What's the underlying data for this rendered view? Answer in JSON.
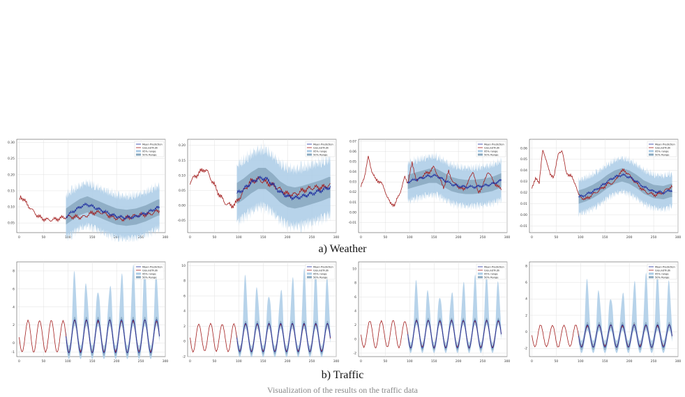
{
  "captions": {
    "weather": "a) Weather",
    "traffic": "b) Traffic"
  },
  "figure_caption": "Visualization of the results on the traffic data",
  "colors": {
    "mean": "#1f2fa0",
    "truth": "#a31d1d",
    "band95": "#aacbe6",
    "band50": "#8aa8bf"
  },
  "chart_data": [
    {
      "type": "line",
      "group": "Weather",
      "panel": 1,
      "xlim": [
        -5,
        300
      ],
      "ylim": [
        0.02,
        0.31
      ],
      "xticks": [
        0,
        50,
        100,
        150,
        200,
        250,
        300
      ],
      "yticks": [
        0.05,
        0.1,
        0.15,
        0.2,
        0.25,
        0.3
      ],
      "ytick_labels": [
        "0.05",
        "0.10",
        "0.15",
        "0.20",
        "0.25",
        "0.30"
      ],
      "legend": [
        "Mean Prediction",
        "GroundTruth",
        "95% range",
        "50% Range"
      ],
      "pred_start": 96,
      "truth_points": [
        [
          0,
          0.12
        ],
        [
          3,
          0.135
        ],
        [
          8,
          0.125
        ],
        [
          15,
          0.11
        ],
        [
          25,
          0.09
        ],
        [
          40,
          0.068
        ],
        [
          55,
          0.062
        ],
        [
          70,
          0.062
        ],
        [
          85,
          0.064
        ],
        [
          96,
          0.066
        ],
        [
          110,
          0.068
        ],
        [
          130,
          0.07
        ],
        [
          150,
          0.082
        ],
        [
          170,
          0.08
        ],
        [
          190,
          0.07
        ],
        [
          210,
          0.063
        ],
        [
          230,
          0.068
        ],
        [
          250,
          0.074
        ],
        [
          270,
          0.08
        ],
        [
          285,
          0.09
        ]
      ],
      "mean_points": [
        [
          96,
          0.07
        ],
        [
          110,
          0.085
        ],
        [
          125,
          0.1
        ],
        [
          140,
          0.108
        ],
        [
          160,
          0.095
        ],
        [
          180,
          0.082
        ],
        [
          200,
          0.07
        ],
        [
          220,
          0.066
        ],
        [
          240,
          0.07
        ],
        [
          260,
          0.08
        ],
        [
          285,
          0.098
        ]
      ],
      "band95_half": 0.07,
      "band50_half": 0.025
    },
    {
      "type": "line",
      "group": "Weather",
      "panel": 2,
      "xlim": [
        -5,
        300
      ],
      "ylim": [
        -0.09,
        0.22
      ],
      "xticks": [
        0,
        50,
        100,
        150,
        200,
        250,
        300
      ],
      "yticks": [
        -0.05,
        0.0,
        0.05,
        0.1,
        0.15,
        0.2
      ],
      "ytick_labels": [
        "-0.05",
        "0.00",
        "0.05",
        "0.10",
        "0.15",
        "0.20"
      ],
      "legend": [
        "Mean Prediction",
        "GroundTruth",
        "95% range",
        "50% Range"
      ],
      "pred_start": 96,
      "truth_points": [
        [
          0,
          0.08
        ],
        [
          10,
          0.1
        ],
        [
          20,
          0.11
        ],
        [
          28,
          0.12
        ],
        [
          35,
          0.11
        ],
        [
          45,
          0.08
        ],
        [
          55,
          0.05
        ],
        [
          70,
          0.015
        ],
        [
          85,
          0.0
        ],
        [
          96,
          0.01
        ],
        [
          110,
          0.045
        ],
        [
          125,
          0.08
        ],
        [
          140,
          0.09
        ],
        [
          155,
          0.08
        ],
        [
          170,
          0.065
        ],
        [
          185,
          0.05
        ],
        [
          200,
          0.038
        ],
        [
          215,
          0.04
        ],
        [
          230,
          0.05
        ],
        [
          250,
          0.055
        ],
        [
          270,
          0.06
        ],
        [
          285,
          0.07
        ]
      ],
      "mean_points": [
        [
          96,
          0.04
        ],
        [
          110,
          0.055
        ],
        [
          125,
          0.075
        ],
        [
          140,
          0.09
        ],
        [
          155,
          0.09
        ],
        [
          170,
          0.07
        ],
        [
          185,
          0.045
        ],
        [
          200,
          0.03
        ],
        [
          215,
          0.025
        ],
        [
          230,
          0.03
        ],
        [
          250,
          0.04
        ],
        [
          270,
          0.05
        ],
        [
          285,
          0.06
        ]
      ],
      "band95_half": 0.1,
      "band50_half": 0.035
    },
    {
      "type": "line",
      "group": "Weather",
      "panel": 3,
      "xlim": [
        -5,
        300
      ],
      "ylim": [
        -0.02,
        0.072
      ],
      "xticks": [
        0,
        50,
        100,
        150,
        200,
        250,
        300
      ],
      "yticks": [
        -0.01,
        0.0,
        0.01,
        0.02,
        0.03,
        0.04,
        0.05,
        0.06,
        0.07
      ],
      "ytick_labels": [
        "-0.01",
        "0.00",
        "0.01",
        "0.02",
        "0.03",
        "0.04",
        "0.05",
        "0.06",
        "0.07"
      ],
      "legend": [
        "Mean Prediction",
        "GroundTruth",
        "95% range",
        "50% Range"
      ],
      "pred_start": 96,
      "truth_points": [
        [
          0,
          0.025
        ],
        [
          8,
          0.038
        ],
        [
          15,
          0.055
        ],
        [
          22,
          0.042
        ],
        [
          30,
          0.032
        ],
        [
          40,
          0.03
        ],
        [
          50,
          0.02
        ],
        [
          60,
          0.008
        ],
        [
          70,
          0.008
        ],
        [
          80,
          0.02
        ],
        [
          90,
          0.035
        ],
        [
          96,
          0.03
        ],
        [
          105,
          0.048
        ],
        [
          115,
          0.03
        ],
        [
          125,
          0.035
        ],
        [
          140,
          0.04
        ],
        [
          150,
          0.045
        ],
        [
          160,
          0.035
        ],
        [
          170,
          0.025
        ],
        [
          180,
          0.04
        ],
        [
          190,
          0.028
        ],
        [
          200,
          0.025
        ],
        [
          210,
          0.022
        ],
        [
          220,
          0.03
        ],
        [
          230,
          0.042
        ],
        [
          240,
          0.02
        ],
        [
          250,
          0.025
        ],
        [
          260,
          0.04
        ],
        [
          270,
          0.032
        ],
        [
          280,
          0.025
        ],
        [
          290,
          0.024
        ]
      ],
      "mean_points": [
        [
          96,
          0.03
        ],
        [
          110,
          0.032
        ],
        [
          125,
          0.034
        ],
        [
          140,
          0.036
        ],
        [
          155,
          0.036
        ],
        [
          170,
          0.032
        ],
        [
          185,
          0.028
        ],
        [
          200,
          0.026
        ],
        [
          215,
          0.025
        ],
        [
          230,
          0.025
        ],
        [
          250,
          0.026
        ],
        [
          270,
          0.028
        ],
        [
          290,
          0.032
        ]
      ],
      "band95_half": 0.02,
      "band50_half": 0.007
    },
    {
      "type": "line",
      "group": "Weather",
      "panel": 4,
      "xlim": [
        -5,
        300
      ],
      "ylim": [
        -0.016,
        0.068
      ],
      "xticks": [
        0,
        50,
        100,
        150,
        200,
        250,
        300
      ],
      "yticks": [
        -0.01,
        0.0,
        0.01,
        0.02,
        0.03,
        0.04,
        0.05,
        0.06
      ],
      "ytick_labels": [
        "-0.01",
        "0.00",
        "0.01",
        "0.02",
        "0.03",
        "0.04",
        "0.05",
        "0.06"
      ],
      "legend": [
        "Mean Prediction",
        "GroundTruth",
        "95% range",
        "50% Range"
      ],
      "pred_start": 96,
      "truth_points": [
        [
          0,
          0.025
        ],
        [
          8,
          0.032
        ],
        [
          15,
          0.03
        ],
        [
          22,
          0.058
        ],
        [
          30,
          0.05
        ],
        [
          38,
          0.035
        ],
        [
          45,
          0.035
        ],
        [
          55,
          0.055
        ],
        [
          62,
          0.058
        ],
        [
          70,
          0.038
        ],
        [
          80,
          0.035
        ],
        [
          90,
          0.028
        ],
        [
          96,
          0.018
        ],
        [
          110,
          0.014
        ],
        [
          125,
          0.018
        ],
        [
          140,
          0.022
        ],
        [
          155,
          0.028
        ],
        [
          170,
          0.03
        ],
        [
          180,
          0.038
        ],
        [
          190,
          0.04
        ],
        [
          200,
          0.035
        ],
        [
          210,
          0.03
        ],
        [
          220,
          0.026
        ],
        [
          230,
          0.022
        ],
        [
          240,
          0.02
        ],
        [
          255,
          0.018
        ],
        [
          270,
          0.02
        ],
        [
          285,
          0.025
        ]
      ],
      "mean_points": [
        [
          96,
          0.016
        ],
        [
          110,
          0.018
        ],
        [
          125,
          0.021
        ],
        [
          140,
          0.025
        ],
        [
          155,
          0.03
        ],
        [
          170,
          0.034
        ],
        [
          185,
          0.036
        ],
        [
          200,
          0.034
        ],
        [
          215,
          0.03
        ],
        [
          230,
          0.025
        ],
        [
          250,
          0.021
        ],
        [
          270,
          0.02
        ],
        [
          285,
          0.022
        ]
      ],
      "band95_half": 0.016,
      "band50_half": 0.006
    },
    {
      "type": "line",
      "group": "Traffic",
      "panel": 1,
      "xlim": [
        -5,
        300
      ],
      "ylim": [
        -1.5,
        9
      ],
      "xticks": [
        0,
        50,
        100,
        150,
        200,
        250,
        300
      ],
      "yticks": [
        -1,
        0,
        2,
        4,
        6,
        8
      ],
      "ytick_labels": [
        "-1",
        "0",
        "2",
        "4",
        "6",
        "8"
      ],
      "legend": [
        "Mean Prediction",
        "GroundTruth",
        "95% range",
        "50% Range"
      ],
      "pred_start": 96,
      "cycle": {
        "period": 24,
        "low": -1.0,
        "high": 2.5,
        "phase": 12
      },
      "band95_high": 8.0
    },
    {
      "type": "line",
      "group": "Traffic",
      "panel": 2,
      "xlim": [
        -5,
        300
      ],
      "ylim": [
        -2,
        10.5
      ],
      "xticks": [
        0,
        50,
        100,
        150,
        200,
        250,
        300
      ],
      "yticks": [
        -2,
        0,
        2,
        4,
        6,
        8,
        10
      ],
      "ytick_labels": [
        "-2",
        "0",
        "2",
        "4",
        "6",
        "8",
        "10"
      ],
      "legend": [
        "Mean Prediction",
        "GroundTruth",
        "95% range",
        "50% Range"
      ],
      "pred_start": 96,
      "cycle": {
        "period": 24,
        "low": -1.3,
        "high": 2.3,
        "phase": 12
      },
      "band95_high": 9.0
    },
    {
      "type": "line",
      "group": "Traffic",
      "panel": 3,
      "xlim": [
        -5,
        300
      ],
      "ylim": [
        -2.5,
        11
      ],
      "xticks": [
        0,
        50,
        100,
        150,
        200,
        250,
        300
      ],
      "yticks": [
        -2,
        0,
        2,
        4,
        6,
        8,
        10
      ],
      "ytick_labels": [
        "-2",
        "0",
        "2",
        "4",
        "6",
        "8",
        "10"
      ],
      "legend": [
        "Mean Prediction",
        "GroundTruth",
        "95% range",
        "50% Range"
      ],
      "pred_start": 96,
      "cycle": {
        "period": 24,
        "low": -1.2,
        "high": 2.6,
        "phase": 12
      },
      "band95_high": 8.5
    },
    {
      "type": "line",
      "group": "Traffic",
      "panel": 4,
      "xlim": [
        -5,
        300
      ],
      "ylim": [
        -3,
        8.5
      ],
      "xticks": [
        0,
        50,
        100,
        150,
        200,
        250,
        300
      ],
      "yticks": [
        -2,
        0,
        2,
        4,
        6,
        8
      ],
      "ytick_labels": [
        "-2",
        "0",
        "2",
        "4",
        "6",
        "8"
      ],
      "legend": [
        "Mean Prediction",
        "GroundTruth",
        "95% range",
        "50% Range"
      ],
      "pred_start": 96,
      "cycle": {
        "period": 24,
        "low": -1.8,
        "high": 0.8,
        "phase": 12
      },
      "band95_high": 6.5
    }
  ]
}
